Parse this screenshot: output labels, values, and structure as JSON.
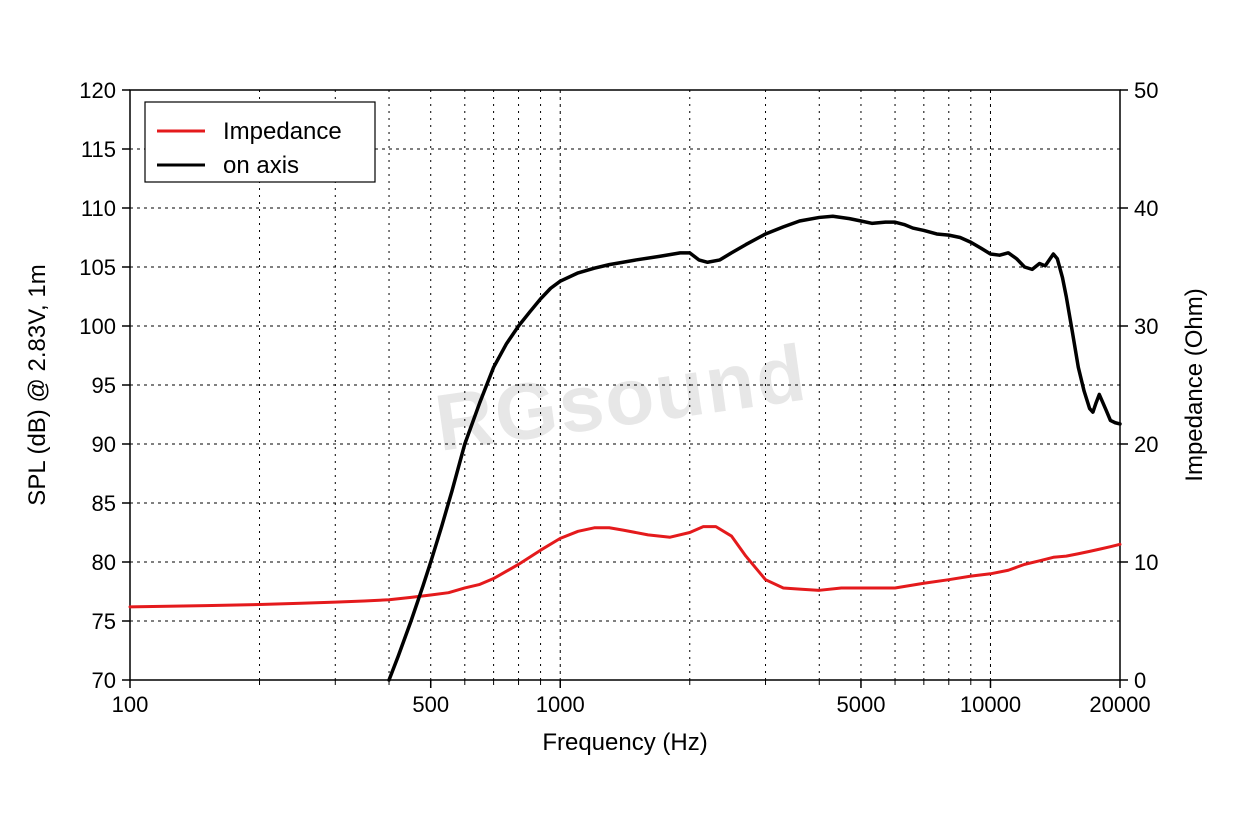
{
  "chart": {
    "type": "line-dual-axis-logx",
    "background_color": "#ffffff",
    "plot_border_color": "#000000",
    "grid_major_color": "#000000",
    "grid_major_dash": "3,4",
    "grid_minor_dash": "2,5",
    "font_family": "Arial, sans-serif",
    "tick_fontsize": 22,
    "label_fontsize": 24,
    "x": {
      "label": "Frequency (Hz)",
      "scale": "log",
      "min": 100,
      "max": 20000,
      "major_ticks": [
        100,
        1000,
        10000
      ],
      "labeled_ticks": [
        {
          "v": 100,
          "t": "100"
        },
        {
          "v": 500,
          "t": "500"
        },
        {
          "v": 1000,
          "t": "1000"
        },
        {
          "v": 5000,
          "t": "5000"
        },
        {
          "v": 10000,
          "t": "10000"
        },
        {
          "v": 20000,
          "t": "20000"
        }
      ],
      "minor_ticks": [
        200,
        300,
        400,
        500,
        600,
        700,
        800,
        900,
        2000,
        3000,
        4000,
        5000,
        6000,
        7000,
        8000,
        9000,
        20000
      ]
    },
    "y_left": {
      "label": "SPL (dB) @ 2.83V, 1m",
      "min": 70,
      "max": 120,
      "step": 5,
      "ticks": [
        70,
        75,
        80,
        85,
        90,
        95,
        100,
        105,
        110,
        115,
        120
      ]
    },
    "y_right": {
      "label": "Impedance (Ohm)",
      "min": 0,
      "max": 50,
      "step": 10,
      "ticks": [
        0,
        10,
        20,
        30,
        40,
        50
      ]
    },
    "legend": {
      "position": "top-left-inside",
      "border_color": "#000000",
      "items": [
        {
          "label": "Impedance",
          "color": "#e41a1c"
        },
        {
          "label": "on axis",
          "color": "#000000"
        }
      ]
    },
    "watermark": {
      "text": "RGsound",
      "color": "#d8d8d8",
      "opacity": 0.6,
      "fontsize": 80,
      "rotation_deg": -8
    },
    "series": [
      {
        "name": "impedance",
        "axis": "right",
        "color": "#e41a1c",
        "line_width": 3,
        "points": [
          [
            100,
            6.2
          ],
          [
            150,
            6.3
          ],
          [
            200,
            6.4
          ],
          [
            250,
            6.5
          ],
          [
            300,
            6.6
          ],
          [
            350,
            6.7
          ],
          [
            400,
            6.8
          ],
          [
            450,
            7.0
          ],
          [
            500,
            7.2
          ],
          [
            550,
            7.4
          ],
          [
            600,
            7.8
          ],
          [
            650,
            8.1
          ],
          [
            700,
            8.6
          ],
          [
            800,
            9.8
          ],
          [
            900,
            11.0
          ],
          [
            1000,
            12.0
          ],
          [
            1100,
            12.6
          ],
          [
            1200,
            12.9
          ],
          [
            1300,
            12.9
          ],
          [
            1400,
            12.7
          ],
          [
            1600,
            12.3
          ],
          [
            1800,
            12.1
          ],
          [
            2000,
            12.5
          ],
          [
            2150,
            13.0
          ],
          [
            2300,
            13.0
          ],
          [
            2500,
            12.2
          ],
          [
            2700,
            10.5
          ],
          [
            3000,
            8.5
          ],
          [
            3300,
            7.8
          ],
          [
            3600,
            7.7
          ],
          [
            4000,
            7.6
          ],
          [
            4500,
            7.8
          ],
          [
            5000,
            7.8
          ],
          [
            6000,
            7.8
          ],
          [
            7000,
            8.2
          ],
          [
            8000,
            8.5
          ],
          [
            9000,
            8.8
          ],
          [
            10000,
            9.0
          ],
          [
            11000,
            9.3
          ],
          [
            12000,
            9.8
          ],
          [
            13000,
            10.1
          ],
          [
            14000,
            10.4
          ],
          [
            15000,
            10.5
          ],
          [
            16000,
            10.7
          ],
          [
            17000,
            10.9
          ],
          [
            18000,
            11.1
          ],
          [
            19000,
            11.3
          ],
          [
            20000,
            11.5
          ]
        ]
      },
      {
        "name": "on-axis",
        "axis": "left",
        "color": "#000000",
        "line_width": 3.5,
        "points": [
          [
            400,
            70.0
          ],
          [
            420,
            72.0
          ],
          [
            450,
            75.0
          ],
          [
            480,
            78.0
          ],
          [
            500,
            80.0
          ],
          [
            530,
            83.0
          ],
          [
            560,
            86.0
          ],
          [
            600,
            90.0
          ],
          [
            650,
            93.5
          ],
          [
            700,
            96.5
          ],
          [
            750,
            98.5
          ],
          [
            800,
            100.0
          ],
          [
            850,
            101.2
          ],
          [
            900,
            102.3
          ],
          [
            950,
            103.2
          ],
          [
            1000,
            103.8
          ],
          [
            1100,
            104.5
          ],
          [
            1200,
            104.9
          ],
          [
            1300,
            105.2
          ],
          [
            1500,
            105.6
          ],
          [
            1700,
            105.9
          ],
          [
            1900,
            106.2
          ],
          [
            2000,
            106.2
          ],
          [
            2100,
            105.6
          ],
          [
            2200,
            105.4
          ],
          [
            2350,
            105.6
          ],
          [
            2500,
            106.2
          ],
          [
            2700,
            106.9
          ],
          [
            3000,
            107.8
          ],
          [
            3300,
            108.4
          ],
          [
            3600,
            108.9
          ],
          [
            4000,
            109.2
          ],
          [
            4300,
            109.3
          ],
          [
            4700,
            109.1
          ],
          [
            5000,
            108.9
          ],
          [
            5300,
            108.7
          ],
          [
            5700,
            108.8
          ],
          [
            6000,
            108.8
          ],
          [
            6300,
            108.6
          ],
          [
            6600,
            108.3
          ],
          [
            7000,
            108.1
          ],
          [
            7500,
            107.8
          ],
          [
            8000,
            107.7
          ],
          [
            8500,
            107.5
          ],
          [
            9000,
            107.1
          ],
          [
            9500,
            106.6
          ],
          [
            10000,
            106.1
          ],
          [
            10500,
            106.0
          ],
          [
            11000,
            106.2
          ],
          [
            11500,
            105.7
          ],
          [
            12000,
            105.0
          ],
          [
            12500,
            104.8
          ],
          [
            13000,
            105.3
          ],
          [
            13400,
            105.1
          ],
          [
            13700,
            105.6
          ],
          [
            14000,
            106.1
          ],
          [
            14300,
            105.7
          ],
          [
            14700,
            104.1
          ],
          [
            15000,
            102.5
          ],
          [
            15500,
            99.5
          ],
          [
            16000,
            96.5
          ],
          [
            16500,
            94.5
          ],
          [
            17000,
            93.0
          ],
          [
            17300,
            92.7
          ],
          [
            17600,
            93.5
          ],
          [
            17900,
            94.2
          ],
          [
            18200,
            93.6
          ],
          [
            18600,
            92.8
          ],
          [
            19000,
            92.0
          ],
          [
            19500,
            91.8
          ],
          [
            20000,
            91.7
          ]
        ]
      }
    ]
  }
}
